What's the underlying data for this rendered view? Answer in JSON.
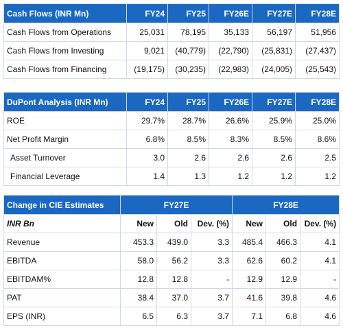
{
  "cash_flows": {
    "title": "Cash Flows (INR Mn)",
    "columns": [
      "FY24",
      "FY25",
      "FY26E",
      "FY27E",
      "FY28E"
    ],
    "rows": [
      {
        "label": "Cash Flows from Operations",
        "values": [
          "25,031",
          "78,195",
          "35,133",
          "56,197",
          "51,956"
        ]
      },
      {
        "label": "Cash Flows from Investing",
        "values": [
          "9,021",
          "(40,779)",
          "(22,790)",
          "(25,831)",
          "(27,437)"
        ]
      },
      {
        "label": "Cash Flows from Financing",
        "values": [
          "(19,175)",
          "(30,235)",
          "(22,983)",
          "(24,005)",
          "(25,543)"
        ]
      }
    ]
  },
  "dupont": {
    "title": "DuPont Analysis (INR Mn)",
    "columns": [
      "FY24",
      "FY25",
      "FY26E",
      "FY27E",
      "FY28E"
    ],
    "rows": [
      {
        "label": "ROE",
        "values": [
          "29.7%",
          "28.7%",
          "26.6%",
          "25.9%",
          "25.0%"
        ]
      },
      {
        "label": "Net Profit Margin",
        "values": [
          "6.8%",
          "8.5%",
          "8.3%",
          "8.5%",
          "8.6%"
        ]
      },
      {
        "label": "Asset Turnover",
        "values": [
          "3.0",
          "2.6",
          "2.6",
          "2.6",
          "2.5"
        ]
      },
      {
        "label": "Financial Leverage",
        "values": [
          "1.4",
          "1.3",
          "1.2",
          "1.2",
          "1.2"
        ]
      }
    ]
  },
  "estimates": {
    "title": "Change in CIE Estimates",
    "group1": "FY27E",
    "group2": "FY28E",
    "unit_label": "INR Bn",
    "subcolumns": [
      "New",
      "Old",
      "Dev. (%)",
      "New",
      "Old",
      "Dev. (%)"
    ],
    "rows": [
      {
        "label": "Revenue",
        "values": [
          "453.3",
          "439.0",
          "3.3",
          "485.4",
          "466.3",
          "4.1"
        ]
      },
      {
        "label": "EBITDA",
        "values": [
          "58.0",
          "56.2",
          "3.3",
          "62.6",
          "60.2",
          "4.1"
        ]
      },
      {
        "label": "EBITDAM%",
        "values": [
          "12.8",
          "12.8",
          "-",
          "12.9",
          "12.9",
          "-"
        ]
      },
      {
        "label": "PAT",
        "values": [
          "38.4",
          "37.0",
          "3.7",
          "41.6",
          "39.8",
          "4.6"
        ]
      },
      {
        "label": "EPS (INR)",
        "values": [
          "6.5",
          "6.3",
          "3.7",
          "7.1",
          "6.8",
          "4.6"
        ]
      }
    ]
  }
}
